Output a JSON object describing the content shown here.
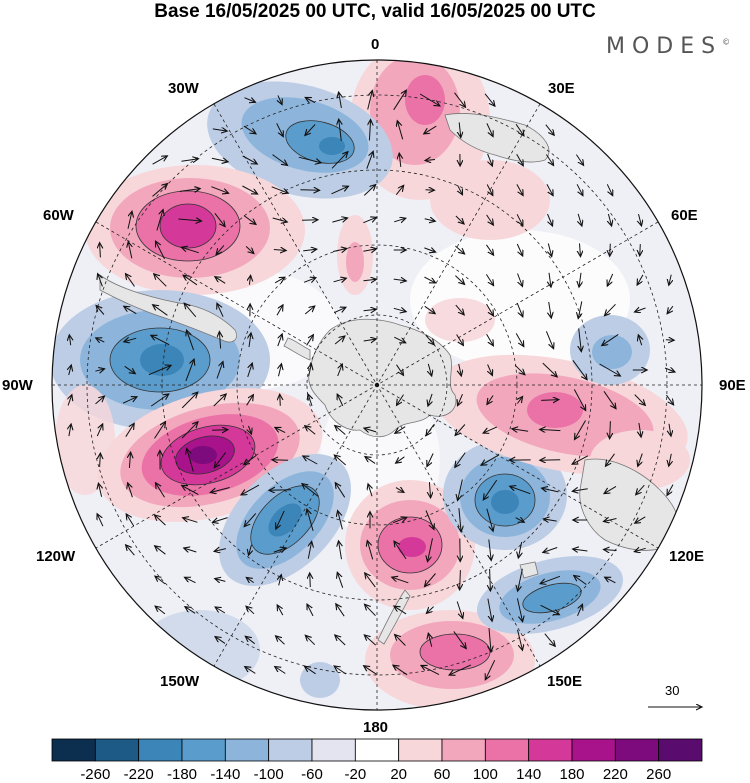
{
  "title": "Base 16/05/2025 00 UTC, valid 16/05/2025 00 UTC",
  "brand": "MODES",
  "brand_mark": "©",
  "longitude_labels": {
    "lon0": "0",
    "lon30e": "30E",
    "lon60e": "60E",
    "lon90e": "90E",
    "lon120e": "120E",
    "lon150e": "150E",
    "lon180": "180",
    "lon150w": "150W",
    "lon120w": "120W",
    "lon90w": "90W",
    "lon60w": "60W",
    "lon30w": "30W"
  },
  "reference_vector_label": "30",
  "colorbar": {
    "ticks": [
      "-260",
      "-220",
      "-180",
      "-140",
      "-100",
      "-60",
      "-20",
      "20",
      "60",
      "100",
      "140",
      "180",
      "220",
      "260"
    ],
    "colors": [
      "#0c2f4f",
      "#1d5a86",
      "#3b85b8",
      "#5a9ccb",
      "#8db5dc",
      "#bccde5",
      "#e3e4f0",
      "#ffffff",
      "#f7d7da",
      "#f2a7bd",
      "#ea72a6",
      "#d4399a",
      "#a8128a",
      "#7d0b7e",
      "#5a0b6e"
    ]
  },
  "colors": {
    "land": "#e6e6e6",
    "coastline": "#777777",
    "grid": "#222222",
    "arrow": "#111111"
  }
}
